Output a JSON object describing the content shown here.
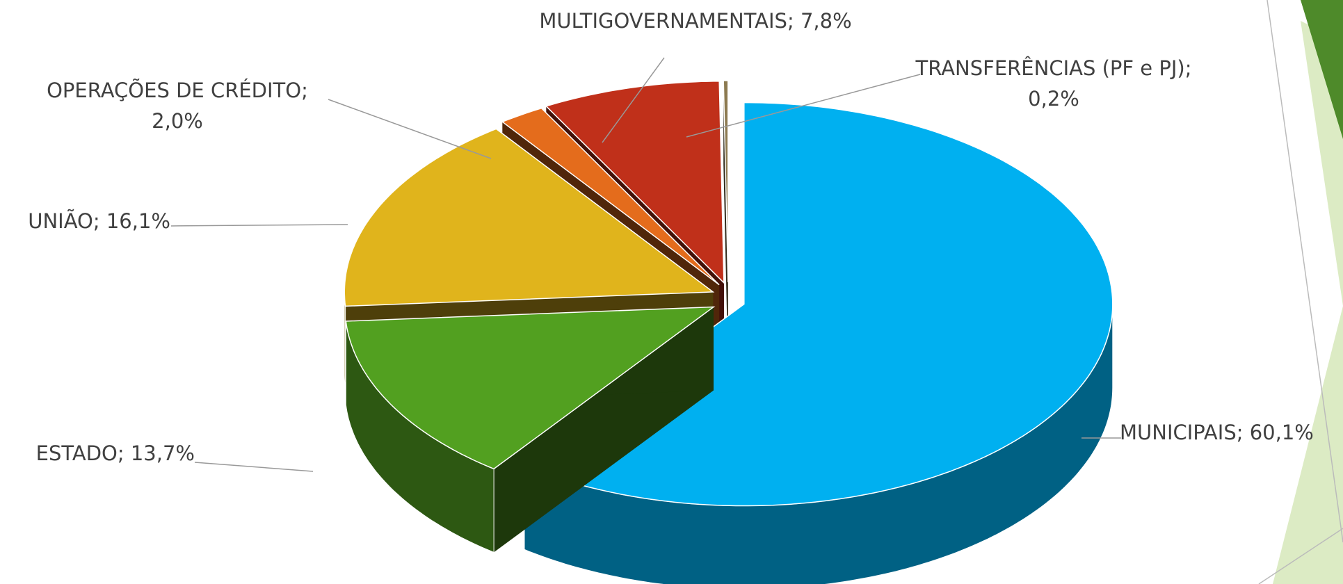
{
  "chart_data": {
    "type": "pie3d",
    "categories": [
      "MUNICIPAIS",
      "ESTADO",
      "UNIÃO",
      "OPERAÇÕES DE CRÉDITO",
      "MULTIGOVERNAMENTAIS",
      "TRANSFERÊNCIAS (PF e PJ)"
    ],
    "values": [
      60.1,
      13.7,
      16.1,
      2.0,
      7.8,
      0.2
    ],
    "value_labels": [
      "60,1%",
      "13,7%",
      "16,1%",
      "2,0%",
      "7,8%",
      "0,2%"
    ],
    "separator": ";",
    "colors": [
      "#00B0F0",
      "#52A020",
      "#E0B41C",
      "#E46C1C",
      "#C0301A",
      "#8C7A50"
    ]
  }
}
